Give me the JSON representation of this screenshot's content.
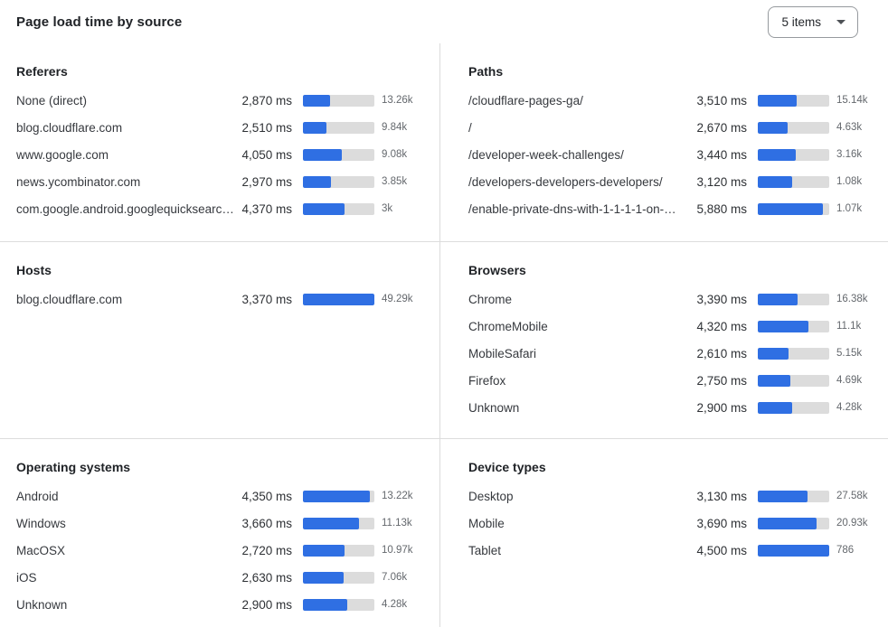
{
  "header": {
    "title": "Page load time by source",
    "items_dropdown": {
      "value": "5 items",
      "icon": "caret-down-icon"
    }
  },
  "colors": {
    "bar_fill": "#2f6fe3",
    "bar_track": "#dcdcdc",
    "divider": "#dcdcdc"
  },
  "chart_data": [
    {
      "type": "bar",
      "orientation": "horizontal",
      "title": "Referers",
      "unit": "ms",
      "bar_scale_ms": 7500,
      "rows": [
        {
          "label": "None (direct)",
          "value_ms": 2870,
          "count": "13.26k"
        },
        {
          "label": "blog.cloudflare.com",
          "value_ms": 2510,
          "count": "9.84k"
        },
        {
          "label": "www.google.com",
          "value_ms": 4050,
          "count": "9.08k"
        },
        {
          "label": "news.ycombinator.com",
          "value_ms": 2970,
          "count": "3.85k"
        },
        {
          "label": "com.google.android.googlequicksearc…",
          "value_ms": 4370,
          "count": "3k"
        }
      ]
    },
    {
      "type": "bar",
      "orientation": "horizontal",
      "title": "Paths",
      "unit": "ms",
      "bar_scale_ms": 6450,
      "rows": [
        {
          "label": "/cloudflare-pages-ga/",
          "value_ms": 3510,
          "count": "15.14k"
        },
        {
          "label": "/",
          "value_ms": 2670,
          "count": "4.63k"
        },
        {
          "label": "/developer-week-challenges/",
          "value_ms": 3440,
          "count": "3.16k"
        },
        {
          "label": "/developers-developers-developers/",
          "value_ms": 3120,
          "count": "1.08k"
        },
        {
          "label": "/enable-private-dns-with-1-1-1-1-on-…",
          "value_ms": 5880,
          "count": "1.07k"
        }
      ]
    },
    {
      "type": "bar",
      "orientation": "horizontal",
      "title": "Hosts",
      "unit": "ms",
      "bar_scale_ms": 3370,
      "rows": [
        {
          "label": "blog.cloudflare.com",
          "value_ms": 3370,
          "count": "49.29k"
        }
      ]
    },
    {
      "type": "bar",
      "orientation": "horizontal",
      "title": "Browsers",
      "unit": "ms",
      "bar_scale_ms": 6100,
      "rows": [
        {
          "label": "Chrome",
          "value_ms": 3390,
          "count": "16.38k"
        },
        {
          "label": "ChromeMobile",
          "value_ms": 4320,
          "count": "11.1k"
        },
        {
          "label": "MobileSafari",
          "value_ms": 2610,
          "count": "5.15k"
        },
        {
          "label": "Firefox",
          "value_ms": 2750,
          "count": "4.69k"
        },
        {
          "label": "Unknown",
          "value_ms": 2900,
          "count": "4.28k"
        }
      ]
    },
    {
      "type": "bar",
      "orientation": "horizontal",
      "title": "Operating systems",
      "unit": "ms",
      "bar_scale_ms": 4650,
      "rows": [
        {
          "label": "Android",
          "value_ms": 4350,
          "count": "13.22k"
        },
        {
          "label": "Windows",
          "value_ms": 3660,
          "count": "11.13k"
        },
        {
          "label": "MacOSX",
          "value_ms": 2720,
          "count": "10.97k"
        },
        {
          "label": "iOS",
          "value_ms": 2630,
          "count": "7.06k"
        },
        {
          "label": "Unknown",
          "value_ms": 2900,
          "count": "4.28k"
        }
      ]
    },
    {
      "type": "bar",
      "orientation": "horizontal",
      "title": "Device types",
      "unit": "ms",
      "bar_scale_ms": 4500,
      "rows": [
        {
          "label": "Desktop",
          "value_ms": 3130,
          "count": "27.58k"
        },
        {
          "label": "Mobile",
          "value_ms": 3690,
          "count": "20.93k"
        },
        {
          "label": "Tablet",
          "value_ms": 4500,
          "count": "786"
        }
      ]
    }
  ]
}
